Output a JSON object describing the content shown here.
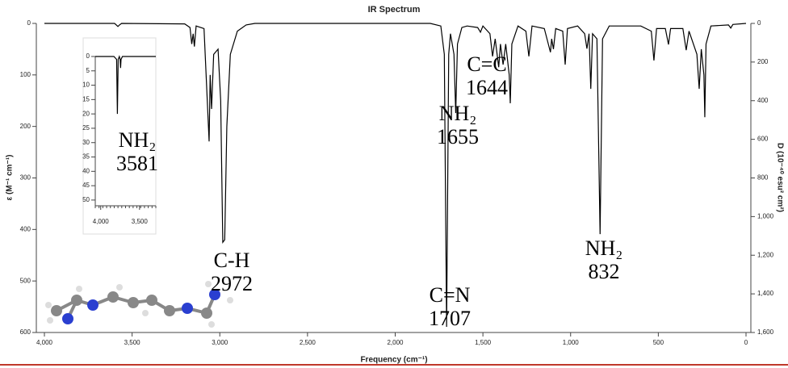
{
  "chart_data": [
    {
      "type": "line",
      "title": "IR Spectrum",
      "x_label": "Frequency (cm⁻¹)",
      "y_label": "ε (M⁻¹ cm⁻¹)",
      "y2_label": "D (10⁻⁴⁰ esu² cm²)",
      "x": [
        4000,
        3600,
        3590,
        3581,
        3572,
        3560,
        3200,
        3170,
        3160,
        3152,
        3145,
        3135,
        3090,
        3061,
        3055,
        3047,
        3035,
        3010,
        2995,
        2983,
        2972,
        2960,
        2940,
        2900,
        2850,
        2800,
        1800,
        1740,
        1720,
        1707,
        1695,
        1685,
        1665,
        1655,
        1645,
        1620,
        1590,
        1530,
        1514,
        1500,
        1460,
        1445,
        1430,
        1410,
        1400,
        1385,
        1370,
        1350,
        1344,
        1335,
        1300,
        1255,
        1238,
        1220,
        1150,
        1115,
        1108,
        1098,
        1085,
        1045,
        1031,
        1018,
        960,
        920,
        907,
        895,
        885,
        875,
        850,
        832,
        818,
        780,
        600,
        540,
        525,
        510,
        460,
        442,
        430,
        360,
        341,
        325,
        280,
        267,
        255,
        240,
        235,
        228,
        200,
        100,
        87,
        75,
        0
      ],
      "series": [
        {
          "color": "#000000",
          "values": [
            0,
            0,
            3,
            6,
            3,
            0,
            1,
            8,
            40,
            20,
            45,
            5,
            10,
            229,
            100,
            166,
            60,
            50,
            150,
            425,
            420,
            200,
            60,
            15,
            3,
            0,
            0,
            5,
            60,
            589,
            60,
            20,
            60,
            174,
            40,
            8,
            5,
            8,
            17,
            5,
            20,
            64,
            30,
            85,
            40,
            80,
            40,
            100,
            155,
            40,
            5,
            15,
            64,
            5,
            10,
            56,
            30,
            50,
            10,
            15,
            80,
            10,
            5,
            20,
            49,
            20,
            127,
            20,
            30,
            409,
            30,
            5,
            5,
            15,
            72,
            10,
            10,
            41,
            10,
            10,
            52,
            15,
            60,
            127,
            50,
            100,
            182,
            40,
            5,
            3,
            9,
            2,
            0
          ]
        }
      ],
      "xlim": [
        4000,
        0
      ],
      "xticks": [
        {
          "value": 4000,
          "label": "4,000"
        },
        {
          "value": 3500,
          "label": "3,500"
        },
        {
          "value": 3000,
          "label": "3,000"
        },
        {
          "value": 2500,
          "label": "2,500"
        },
        {
          "value": 2000,
          "label": "2,000"
        },
        {
          "value": 1500,
          "label": "1,500"
        },
        {
          "value": 1000,
          "label": "1,000"
        },
        500,
        0
      ],
      "ylim": [
        0,
        600
      ],
      "yticks": [
        0,
        100,
        200,
        300,
        400,
        500,
        600
      ],
      "y2lim": [
        0,
        1600
      ],
      "y2ticks": [
        0,
        200,
        400,
        600,
        800,
        {
          "value": 1000,
          "label": "1,000"
        },
        {
          "value": 1200,
          "label": "1,200"
        },
        {
          "value": 1400,
          "label": "1,400"
        },
        {
          "value": 1600,
          "label": "1,600"
        }
      ],
      "annotations": [
        {
          "label": "NH₂",
          "value": 3581
        },
        {
          "label": "C-H",
          "value": 2972
        },
        {
          "label": "C=C",
          "value": 1644
        },
        {
          "label": "NH₂",
          "value": 1655
        },
        {
          "label": "C=N",
          "value": 1707
        },
        {
          "label": "NH₂",
          "value": 832
        }
      ]
    },
    {
      "type": "line",
      "x": [
        4070,
        3830,
        3795,
        3785,
        3775,
        3760,
        3750,
        3744,
        3738,
        3720,
        3290
      ],
      "series": [
        {
          "color": "#000000",
          "values": [
            0,
            0,
            1,
            20,
            1,
            0,
            1,
            4,
            1,
            0,
            0
          ]
        }
      ],
      "xlim": [
        4070,
        3290
      ],
      "xticks": [
        {
          "value": 4000,
          "label": "4,000"
        },
        {
          "value": 3500,
          "label": "3,500"
        }
      ],
      "ylim": [
        0,
        52
      ],
      "yticks": [
        0,
        5,
        10,
        15,
        20,
        25,
        30,
        35,
        40,
        45,
        50
      ]
    }
  ]
}
